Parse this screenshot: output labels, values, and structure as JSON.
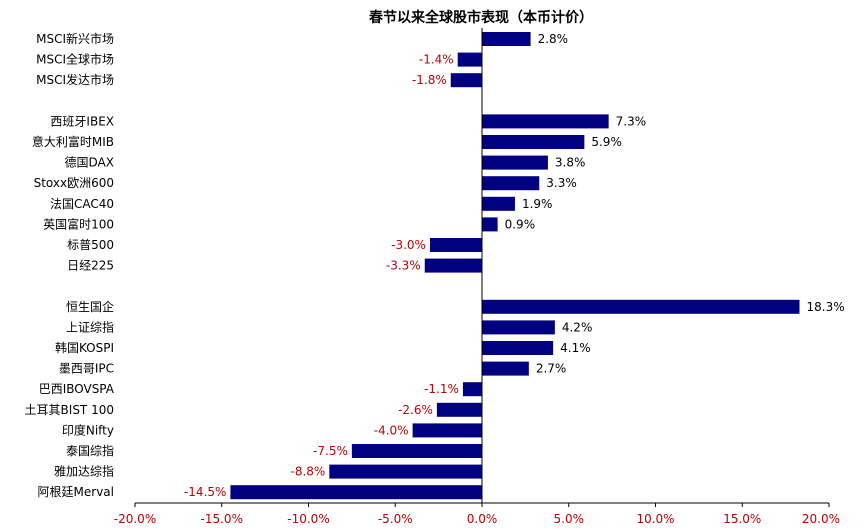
{
  "chart_data": {
    "type": "bar",
    "orientation": "horizontal",
    "title": "春节以来全球股市表现（本币计价）",
    "xlabel": "",
    "ylabel": "",
    "xlim": [
      -20,
      20
    ],
    "xticks": [
      "-20.0%",
      "-15.0%",
      "-10.0%",
      "-5.0%",
      "0.0%",
      "5.0%",
      "10.0%",
      "15.0%",
      "20.0%"
    ],
    "grid": false,
    "legend": "none",
    "groups": [
      {
        "categories": [
          "MSCI新兴市场",
          "MSCI全球市场",
          "MSCI发达市场"
        ],
        "values": [
          2.8,
          -1.4,
          -1.8
        ],
        "labels": [
          "2.8%",
          "-1.4%",
          "-1.8%"
        ]
      },
      {
        "categories": [
          "西班牙IBEX",
          "意大利富时MIB",
          "德国DAX",
          "Stoxx欧洲600",
          "法国CAC40",
          "英国富时100",
          "标普500",
          "日经225"
        ],
        "values": [
          7.3,
          5.9,
          3.8,
          3.3,
          1.9,
          0.9,
          -3.0,
          -3.3
        ],
        "labels": [
          "7.3%",
          "5.9%",
          "3.8%",
          "3.3%",
          "1.9%",
          "0.9%",
          "-3.0%",
          "-3.3%"
        ]
      },
      {
        "categories": [
          "恒生国企",
          "上证综指",
          "韩国KOSPI",
          "墨西哥IPC",
          "巴西IBOVSPA",
          "土耳其BIST 100",
          "印度Nifty",
          "泰国综指",
          "雅加达综指",
          "阿根廷Merval"
        ],
        "values": [
          18.3,
          4.2,
          4.1,
          2.7,
          -1.1,
          -2.6,
          -4.0,
          -7.5,
          -8.8,
          -14.5
        ],
        "labels": [
          "18.3%",
          "4.2%",
          "4.1%",
          "2.7%",
          "-1.1%",
          "-2.6%",
          "-4.0%",
          "-7.5%",
          "-8.8%",
          "-14.5%"
        ]
      }
    ],
    "colors": {
      "bar": "#000080",
      "positive_label": "#000000",
      "negative_label": "#c00000",
      "tick_label": "#c00000",
      "axis": "#000000"
    }
  }
}
